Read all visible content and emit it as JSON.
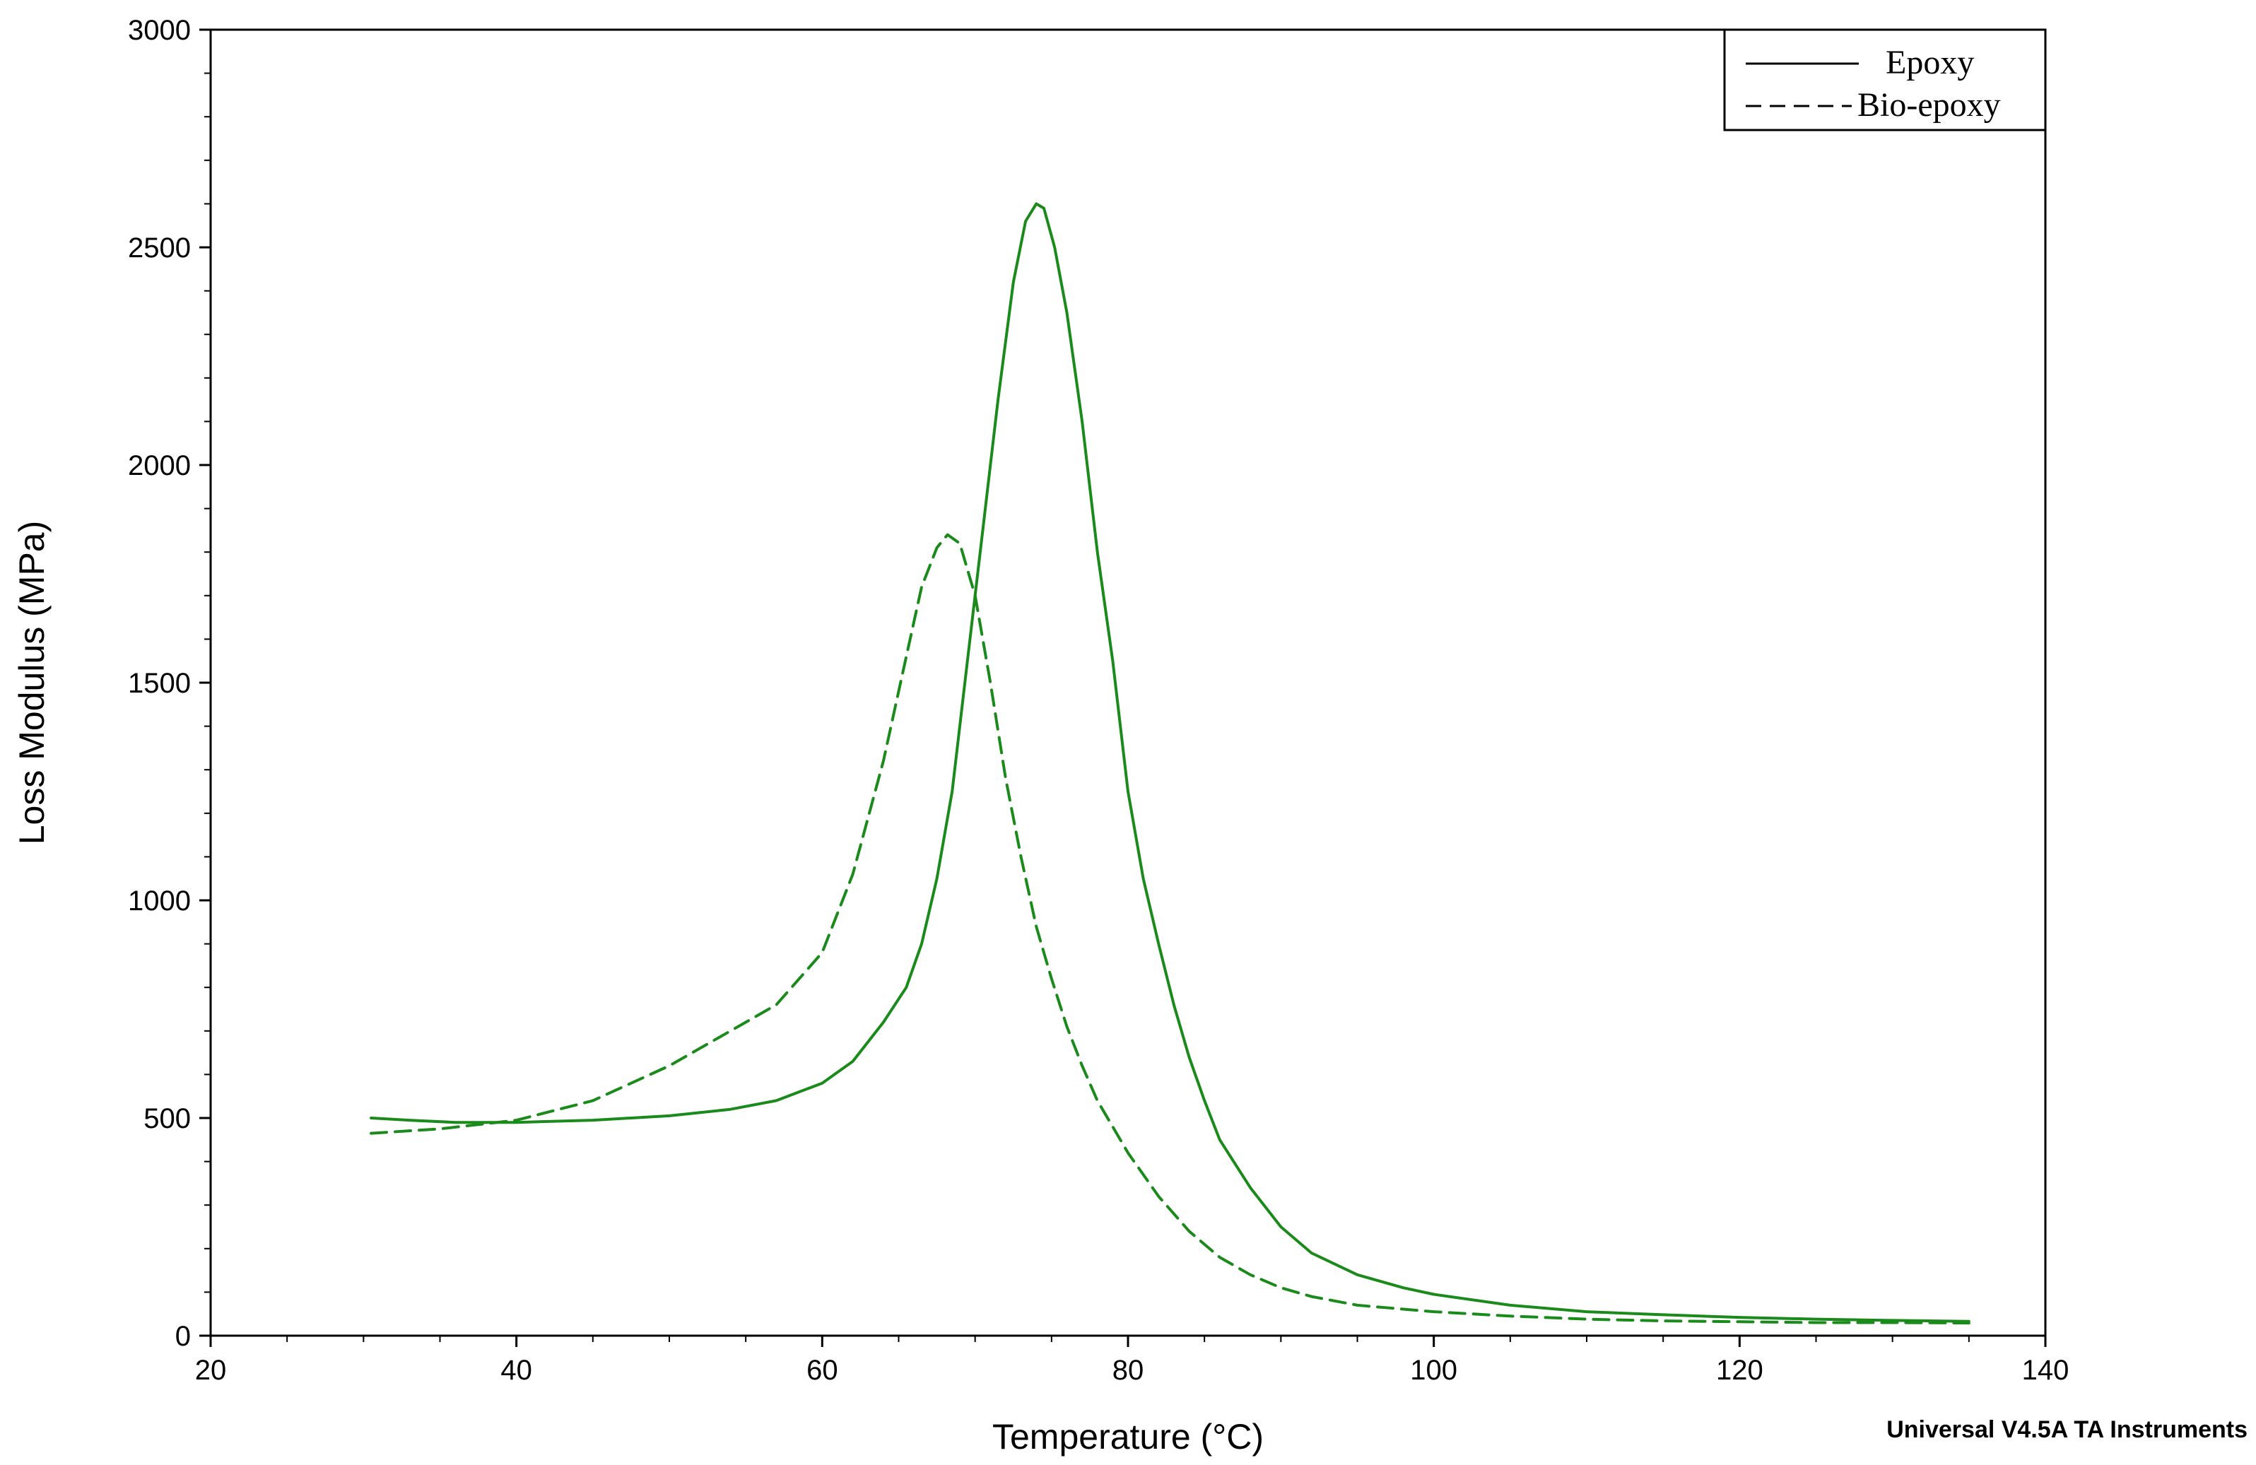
{
  "chart_data": {
    "type": "line",
    "title": "",
    "xlabel": "Temperature (°C)",
    "ylabel": "Loss Modulus (MPa)",
    "xlim": [
      20,
      140
    ],
    "ylim": [
      0,
      3000
    ],
    "x_ticks": [
      "20",
      "40",
      "60",
      "80",
      "100",
      "120",
      "140"
    ],
    "y_ticks": [
      "0",
      "500",
      "1000",
      "1500",
      "2000",
      "2500",
      "3000"
    ],
    "grid": false,
    "legend_position": "top-right",
    "line_color": "#1a8a1a",
    "footer": "Universal V4.5A TA Instruments",
    "series": [
      {
        "name": "Epoxy",
        "style": "solid",
        "x": [
          30.5,
          33,
          36,
          40,
          45,
          50,
          54,
          57,
          60,
          62,
          64,
          65.5,
          66.5,
          67.5,
          68.5,
          69.5,
          70.5,
          71.5,
          72.5,
          73.3,
          74,
          74.5,
          75.2,
          76,
          77,
          78,
          79,
          80,
          81,
          82,
          83,
          84,
          85,
          86,
          88,
          90,
          92,
          95,
          98,
          100,
          105,
          110,
          115,
          120,
          125,
          130,
          135
        ],
        "y": [
          500,
          495,
          490,
          490,
          495,
          505,
          520,
          540,
          580,
          630,
          720,
          800,
          900,
          1050,
          1250,
          1550,
          1850,
          2150,
          2420,
          2560,
          2600,
          2590,
          2500,
          2350,
          2100,
          1800,
          1550,
          1250,
          1050,
          900,
          760,
          640,
          540,
          450,
          340,
          250,
          190,
          140,
          110,
          95,
          70,
          55,
          48,
          42,
          38,
          35,
          33
        ]
      },
      {
        "name": "Bio-epoxy",
        "style": "dashed",
        "x": [
          30.5,
          35,
          40,
          45,
          50,
          54,
          57,
          60,
          62,
          64,
          65.5,
          66.5,
          67.5,
          68.2,
          69,
          70,
          71,
          72,
          73,
          74,
          75,
          76,
          77,
          78,
          80,
          82,
          84,
          86,
          88,
          90,
          92,
          95,
          100,
          105,
          110,
          115,
          120,
          125,
          130,
          135
        ],
        "y": [
          465,
          475,
          495,
          540,
          620,
          700,
          760,
          880,
          1060,
          1320,
          1560,
          1720,
          1810,
          1840,
          1820,
          1700,
          1500,
          1280,
          1100,
          940,
          820,
          710,
          620,
          540,
          420,
          320,
          240,
          180,
          140,
          110,
          90,
          70,
          55,
          45,
          38,
          34,
          32,
          30,
          30,
          29
        ]
      }
    ]
  }
}
